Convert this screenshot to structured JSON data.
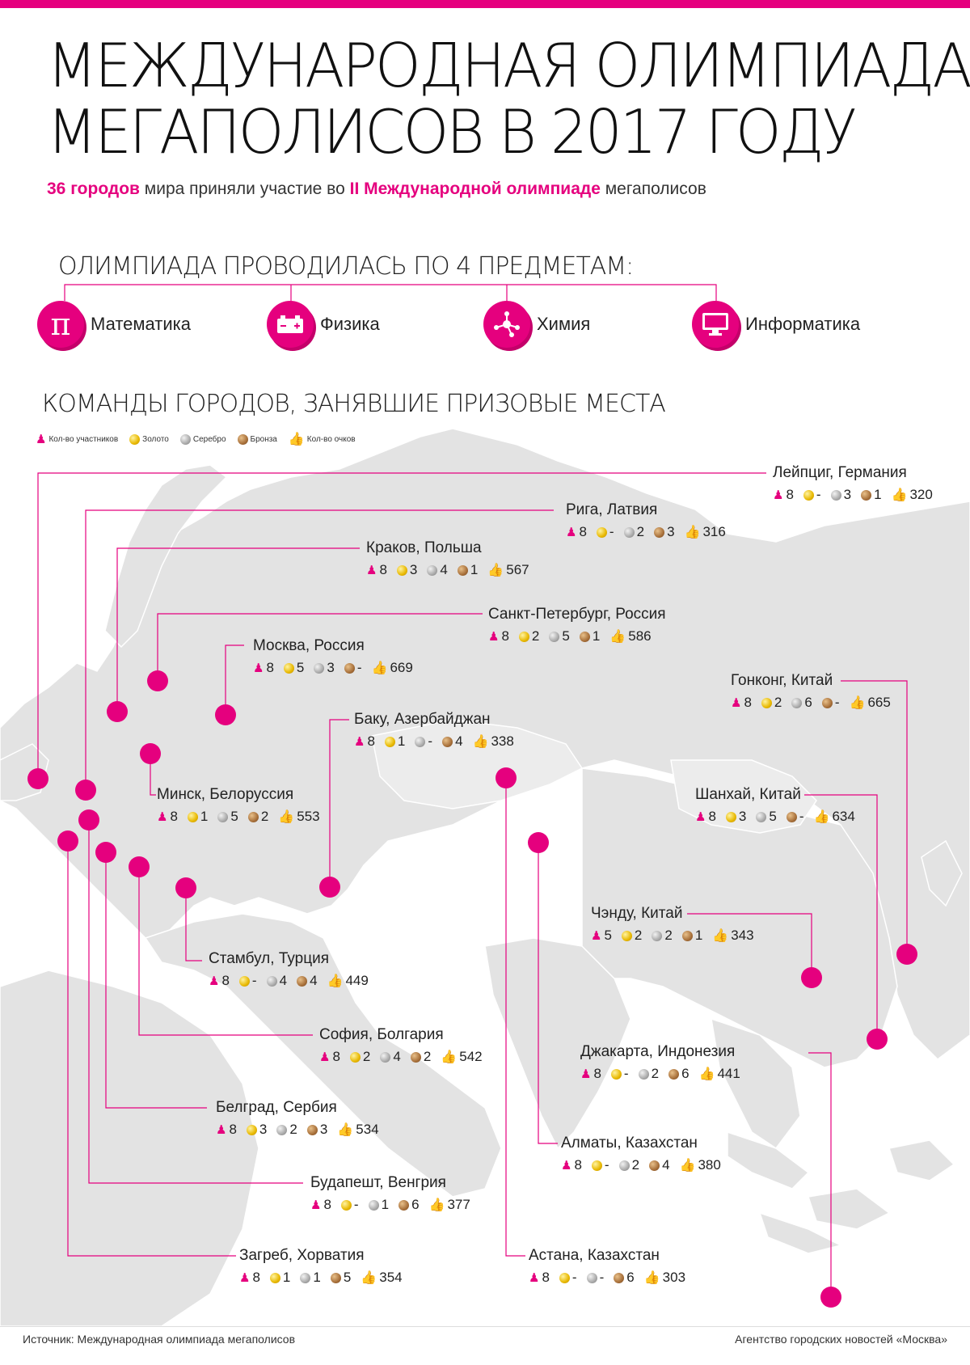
{
  "title_line1": "МЕЖДУНАРОДНАЯ ОЛИМПИАДА",
  "title_line2": "МЕГАПОЛИСОВ В 2017 ГОДУ",
  "subtitle": {
    "part1": "36 городов",
    "part2": " мира приняли участие во ",
    "part3": "II Международной олимпиаде",
    "part4": " мегаполисов"
  },
  "subjects_heading": "ОЛИМПИАДА ПРОВОДИЛАСЬ ПО 4 ПРЕДМЕТАМ:",
  "subjects": [
    {
      "label": "Математика",
      "icon": "pi-icon"
    },
    {
      "label": "Физика",
      "icon": "battery-icon"
    },
    {
      "label": "Химия",
      "icon": "molecule-icon"
    },
    {
      "label": "Информатика",
      "icon": "monitor-icon"
    }
  ],
  "teams_heading": "КОМАНДЫ ГОРОДОВ, ЗАНЯВШИЕ ПРИЗОВЫЕ МЕСТА",
  "legend": {
    "participants": "Кол-во участников",
    "gold": "Золото",
    "silver": "Серебро",
    "bronze": "Бронза",
    "points": "Кол-во очков"
  },
  "colors": {
    "accent": "#e5007e",
    "map_land": "#e3e3e3",
    "map_border": "#ffffff"
  },
  "cities": [
    {
      "name": "Лейпциг, Германия",
      "participants": "8",
      "gold": "-",
      "silver": "3",
      "bronze": "1",
      "points": "320"
    },
    {
      "name": "Рига, Латвия",
      "participants": "8",
      "gold": "-",
      "silver": "2",
      "bronze": "3",
      "points": "316"
    },
    {
      "name": "Краков, Польша",
      "participants": "8",
      "gold": "3",
      "silver": "4",
      "bronze": "1",
      "points": "567"
    },
    {
      "name": "Санкт-Петербург, Россия",
      "participants": "8",
      "gold": "2",
      "silver": "5",
      "bronze": "1",
      "points": "586"
    },
    {
      "name": "Москва, Россия",
      "participants": "8",
      "gold": "5",
      "silver": "3",
      "bronze": "-",
      "points": "669"
    },
    {
      "name": "Гонконг, Китай",
      "participants": "8",
      "gold": "2",
      "silver": "6",
      "bronze": "-",
      "points": "665"
    },
    {
      "name": "Баку, Азербайджан",
      "participants": "8",
      "gold": "1",
      "silver": "-",
      "bronze": "4",
      "points": "338"
    },
    {
      "name": "Минск, Белоруссия",
      "participants": "8",
      "gold": "1",
      "silver": "5",
      "bronze": "2",
      "points": "553"
    },
    {
      "name": "Шанхай, Китай",
      "participants": "8",
      "gold": "3",
      "silver": "5",
      "bronze": "-",
      "points": "634"
    },
    {
      "name": "Чэнду, Китай",
      "participants": "5",
      "gold": "2",
      "silver": "2",
      "bronze": "1",
      "points": "343"
    },
    {
      "name": "Стамбул, Турция",
      "participants": "8",
      "gold": "-",
      "silver": "4",
      "bronze": "4",
      "points": "449"
    },
    {
      "name": "София, Болгария",
      "participants": "8",
      "gold": "2",
      "silver": "4",
      "bronze": "2",
      "points": "542"
    },
    {
      "name": "Джакарта, Индонезия",
      "participants": "8",
      "gold": "-",
      "silver": "2",
      "bronze": "6",
      "points": "441"
    },
    {
      "name": "Белград, Сербия",
      "participants": "8",
      "gold": "3",
      "silver": "2",
      "bronze": "3",
      "points": "534"
    },
    {
      "name": "Алматы, Казахстан",
      "participants": "8",
      "gold": "-",
      "silver": "2",
      "bronze": "4",
      "points": "380"
    },
    {
      "name": "Будапешт, Венгрия",
      "participants": "8",
      "gold": "-",
      "silver": "1",
      "bronze": "6",
      "points": "377"
    },
    {
      "name": "Загреб, Хорватия",
      "participants": "8",
      "gold": "1",
      "silver": "1",
      "bronze": "5",
      "points": "354"
    },
    {
      "name": "Астана, Казахстан",
      "participants": "8",
      "gold": "-",
      "silver": "-",
      "bronze": "6",
      "points": "303"
    }
  ],
  "footer": {
    "source": "Источник: Международная олимпиада мегаполисов",
    "agency": "Агентство городских новостей «Москва»"
  }
}
